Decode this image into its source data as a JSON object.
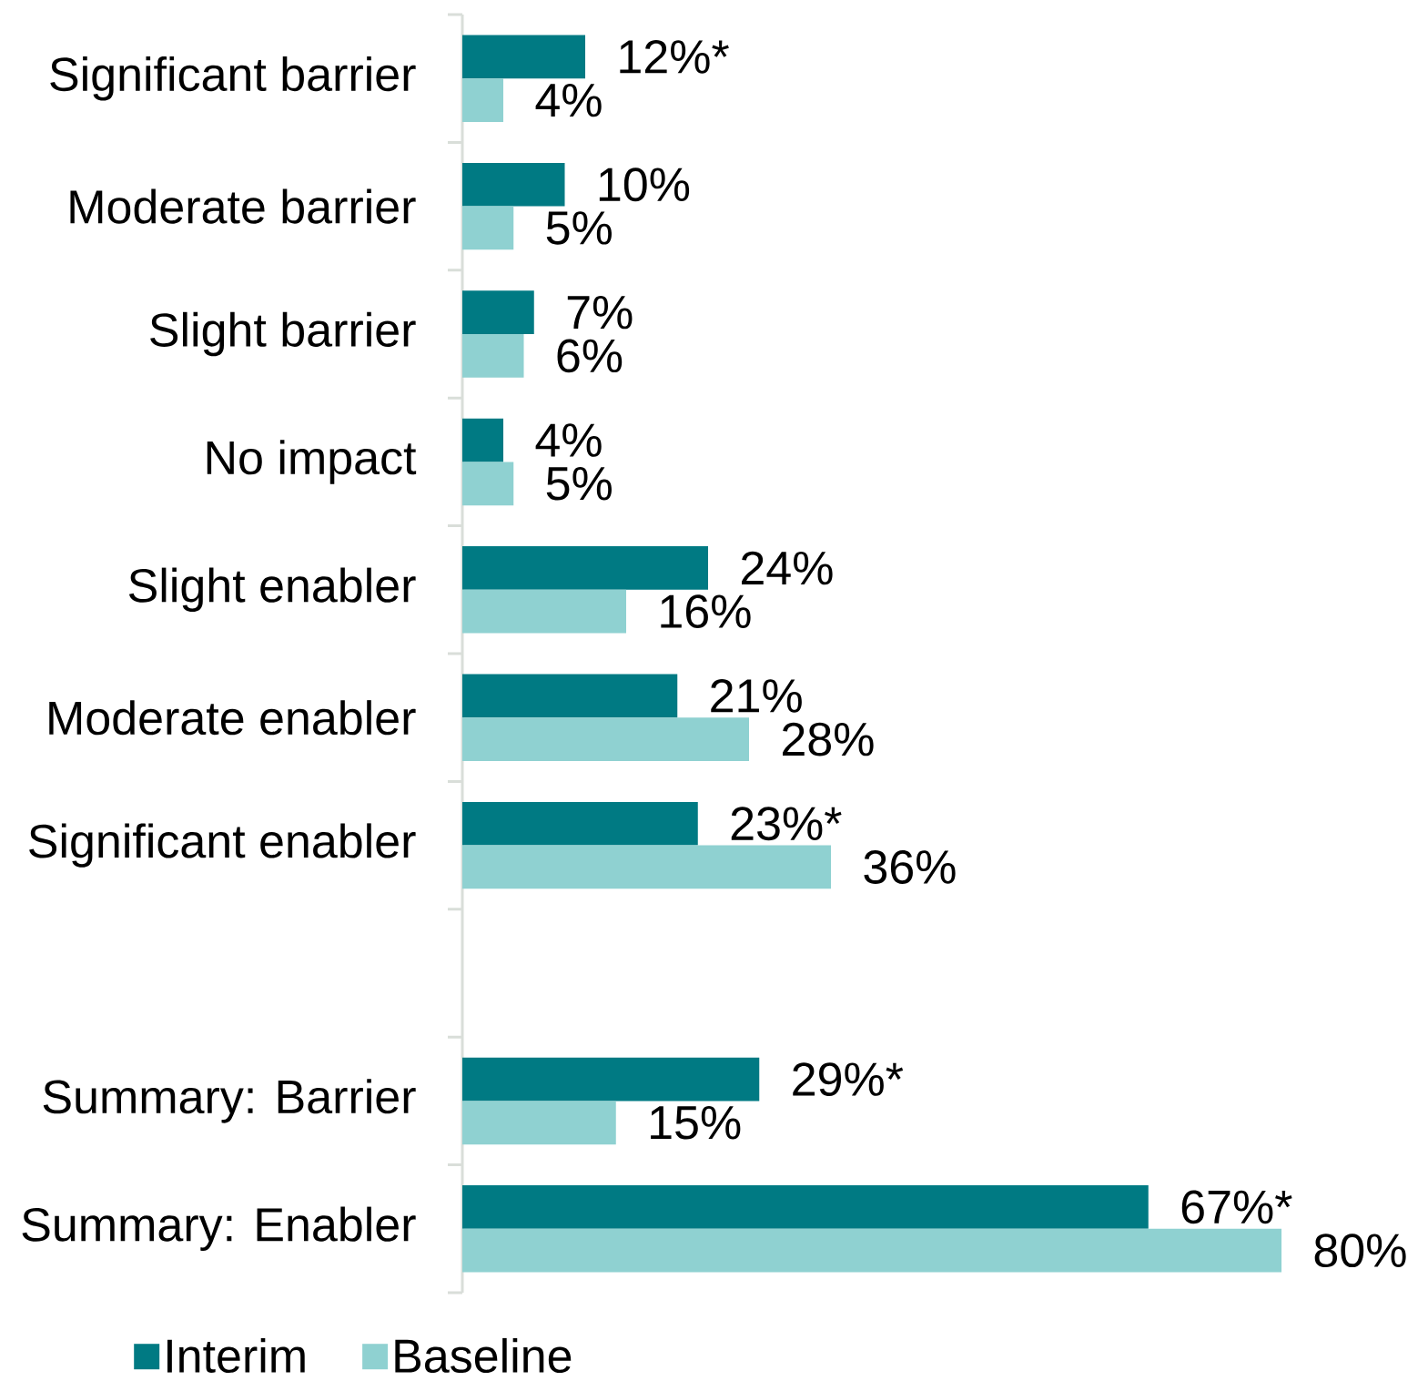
{
  "chart_data": {
    "type": "bar",
    "orientation": "horizontal",
    "categories": [
      "Significant barrier",
      "Moderate barrier",
      "Slight barrier",
      "No impact",
      "Slight enabler",
      "Moderate enabler",
      "Significant enabler",
      null,
      "Summary: Barrier",
      "Summary: Enabler"
    ],
    "series": [
      {
        "name": "Interim",
        "color": "#007a83",
        "values": [
          12,
          10,
          7,
          4,
          24,
          21,
          23,
          null,
          29,
          67
        ],
        "value_labels": [
          "12%*",
          "10%",
          "7%",
          "4%",
          "24%",
          "21%",
          "23%*",
          null,
          "29%*",
          "67%*"
        ]
      },
      {
        "name": "Baseline",
        "color": "#8fd1d1",
        "values": [
          4,
          5,
          6,
          5,
          16,
          28,
          36,
          null,
          15,
          80
        ],
        "value_labels": [
          "4%",
          "5%",
          "6%",
          "5%",
          "16%",
          "28%",
          "36%",
          null,
          "15%",
          "80%"
        ]
      }
    ],
    "legend": "bottom"
  }
}
